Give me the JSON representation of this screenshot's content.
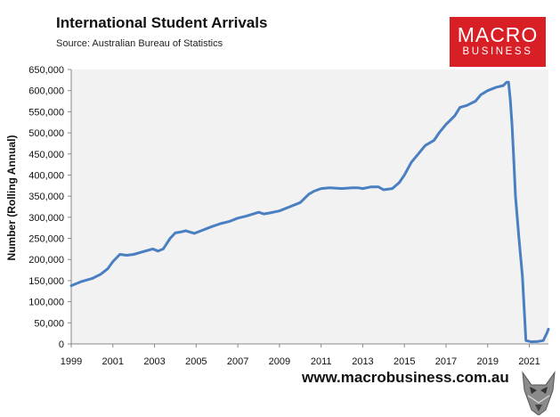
{
  "header": {
    "title": "International Student Arrivals",
    "source": "Source: Australian Bureau of Statistics"
  },
  "logo": {
    "line1": "MACRO",
    "line2": "BUSINESS",
    "color": "#d91f26"
  },
  "footer": {
    "url": "www.macrobusiness.com.au"
  },
  "colors": {
    "line": "#4a7fc1",
    "plot_bg": "#f2f2f2"
  },
  "chart_data": {
    "type": "line",
    "title": "International Student Arrivals",
    "xlabel": "",
    "ylabel": "Number (Rolling Annual)",
    "ylim": [
      0,
      650000
    ],
    "xlim": [
      "1999-01",
      "2021-12"
    ],
    "grid": false,
    "yticks": [
      0,
      50000,
      100000,
      150000,
      200000,
      250000,
      300000,
      350000,
      400000,
      450000,
      500000,
      550000,
      600000,
      650000
    ],
    "ytick_labels": [
      "0",
      "50,000",
      "100,000",
      "150,000",
      "200,000",
      "250,000",
      "300,000",
      "350,000",
      "400,000",
      "450,000",
      "500,000",
      "550,000",
      "600,000",
      "650,000"
    ],
    "xticks": [
      "1999-01",
      "2001-01",
      "2003-01",
      "2005-01",
      "2007-01",
      "2009-01",
      "2011-01",
      "2013-01",
      "2015-01",
      "2017-01",
      "2019-01",
      "2021-01"
    ],
    "xtick_labels": [
      "1999",
      "2001",
      "2003",
      "2005",
      "2007",
      "2009",
      "2011",
      "2013",
      "2015",
      "2017",
      "2019",
      "2021"
    ],
    "series": [
      {
        "x": [
          "1999-01",
          "1999-07",
          "2000-01",
          "2000-06",
          "2000-10",
          "2001-01",
          "2001-05",
          "2001-09",
          "2002-01",
          "2002-06",
          "2002-12",
          "2003-03",
          "2003-06",
          "2003-10",
          "2004-01",
          "2004-04",
          "2004-07",
          "2004-12",
          "2005-05",
          "2005-10",
          "2006-03",
          "2006-08",
          "2007-01",
          "2007-06",
          "2008-01",
          "2008-04",
          "2008-07",
          "2009-01",
          "2009-07",
          "2010-01",
          "2010-06",
          "2010-09",
          "2011-01",
          "2011-06",
          "2012-01",
          "2012-07",
          "2012-10",
          "2013-01",
          "2013-06",
          "2013-10",
          "2014-01",
          "2014-06",
          "2014-10",
          "2015-01",
          "2015-05",
          "2015-09",
          "2016-01",
          "2016-06",
          "2016-09",
          "2017-01",
          "2017-06",
          "2017-09",
          "2018-01",
          "2018-06",
          "2018-09",
          "2019-01",
          "2019-06",
          "2019-10",
          "2019-12",
          "2020-01",
          "2020-02",
          "2020-03",
          "2020-04",
          "2020-05",
          "2020-07",
          "2020-09",
          "2020-11",
          "2021-02",
          "2021-06",
          "2021-09",
          "2021-11",
          "2021-12"
        ],
        "values": [
          138000,
          148000,
          155000,
          165000,
          178000,
          195000,
          212000,
          210000,
          212000,
          218000,
          225000,
          220000,
          225000,
          250000,
          263000,
          265000,
          268000,
          262000,
          270000,
          278000,
          285000,
          290000,
          298000,
          303000,
          312000,
          308000,
          310000,
          315000,
          325000,
          335000,
          355000,
          362000,
          368000,
          370000,
          368000,
          370000,
          370000,
          368000,
          372000,
          372000,
          365000,
          368000,
          382000,
          400000,
          430000,
          450000,
          470000,
          482000,
          500000,
          520000,
          540000,
          560000,
          565000,
          575000,
          590000,
          600000,
          608000,
          612000,
          620000,
          620000,
          580000,
          520000,
          440000,
          350000,
          250000,
          160000,
          8000,
          5000,
          6000,
          8000,
          25000,
          35000
        ]
      }
    ]
  }
}
